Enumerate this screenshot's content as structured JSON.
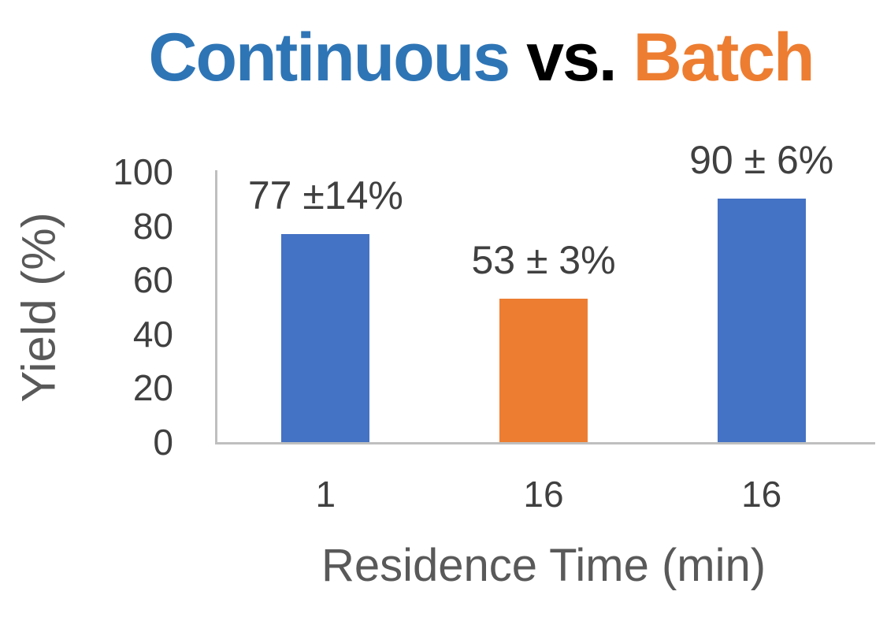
{
  "title": {
    "text": "Continuous vs. Batch",
    "parts": [
      {
        "text": "Continuous",
        "color": "#2E75B6"
      },
      {
        "text": "vs.",
        "color": "#000000"
      },
      {
        "text": "Batch",
        "color": "#ED7D31"
      }
    ]
  },
  "chart_data": {
    "type": "bar",
    "title": "Continuous vs. Batch",
    "xlabel": "Residence Time (min)",
    "ylabel": "Yield (%)",
    "categories": [
      "1",
      "16",
      "16"
    ],
    "values": [
      77,
      53,
      90
    ],
    "errors": [
      14,
      3,
      6
    ],
    "data_labels": [
      "77 ±14%",
      "53 ± 3%",
      "90 ± 6%"
    ],
    "bar_colors": [
      "#4472C4",
      "#ED7D31",
      "#4472C4"
    ],
    "ylim": [
      0,
      100
    ],
    "yticks": [
      0,
      20,
      40,
      60,
      80,
      100
    ],
    "grid": false,
    "legend": "none",
    "axis_line_color": "#BFBFBF",
    "tick_label_color": "#404040",
    "data_label_color": "#404040",
    "axis_title_color": "#595959"
  }
}
